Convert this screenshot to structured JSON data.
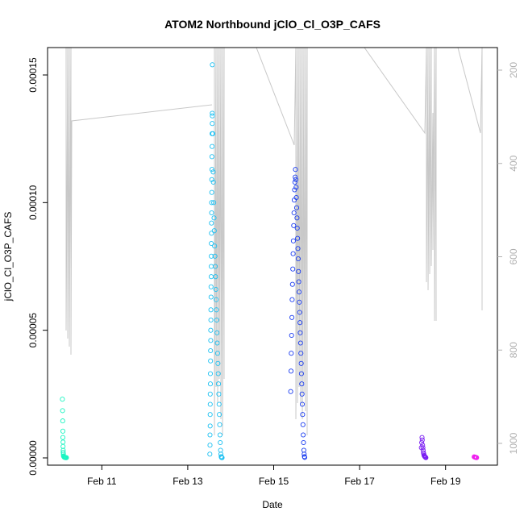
{
  "chart_data": {
    "type": "scatter",
    "title": "ATOM2 Northbound jClO_Cl_O3P_CAFS",
    "xlabel": "Date",
    "ylabel": "jClO_Cl_O3P_CAFS",
    "xlim": [
      "2016-02-10T00:00",
      "2016-02-20T00:00"
    ],
    "ylim": [
      0,
      0.000155
    ],
    "x_ticks": [
      {
        "x": "2016-02-11T00:00",
        "label": "Feb 11"
      },
      {
        "x": "2016-02-13T00:00",
        "label": "Feb 13"
      },
      {
        "x": "2016-02-15T00:00",
        "label": "Feb 15"
      },
      {
        "x": "2016-02-17T00:00",
        "label": "Feb 17"
      },
      {
        "x": "2016-02-19T00:00",
        "label": "Feb 19"
      }
    ],
    "y_ticks": [
      {
        "y": 0,
        "label": "0.00000"
      },
      {
        "y": 5e-05,
        "label": "0.00005"
      },
      {
        "y": 0.0001,
        "label": "0.00010"
      },
      {
        "y": 0.00015,
        "label": "0.00015"
      }
    ],
    "right_axis": {
      "ylim": [
        170,
        1055
      ],
      "ticks": [
        {
          "y": 200,
          "label": "200"
        },
        {
          "y": 400,
          "label": "400"
        },
        {
          "y": 600,
          "label": "600"
        },
        {
          "y": 800,
          "label": "800"
        },
        {
          "y": 1000,
          "label": "1000"
        }
      ],
      "color": "#b0b0b0"
    },
    "grid": false,
    "series": [
      {
        "color": "#19f5c1",
        "points": [
          [
            "2016-02-10T02:00",
            2.3e-05
          ],
          [
            "2016-02-10T02:05",
            1.85e-05
          ],
          [
            "2016-02-10T02:10",
            1.45e-05
          ],
          [
            "2016-02-10T02:15",
            1.05e-05
          ],
          [
            "2016-02-10T02:15",
            8e-06
          ],
          [
            "2016-02-10T02:20",
            6.2e-06
          ],
          [
            "2016-02-10T02:20",
            4.5e-06
          ],
          [
            "2016-02-10T02:25",
            3e-06
          ],
          [
            "2016-02-10T02:25",
            2.2e-06
          ],
          [
            "2016-02-10T02:30",
            1.5e-06
          ],
          [
            "2016-02-10T02:35",
            8e-07
          ],
          [
            "2016-02-10T02:45",
            5e-07
          ],
          [
            "2016-02-10T02:55",
            3e-07
          ],
          [
            "2016-02-10T03:10",
            2e-07
          ],
          [
            "2016-02-10T03:25",
            2e-07
          ],
          [
            "2016-02-10T03:40",
            1e-07
          ],
          [
            "2016-02-10T04:00",
            1e-07
          ],
          [
            "2016-02-10T04:15",
            1e-07
          ]
        ]
      },
      {
        "color": "#1cc0f2",
        "points": [
          [
            "2016-02-13T12:20",
            1.5e-06
          ],
          [
            "2016-02-13T12:25",
            5e-06
          ],
          [
            "2016-02-13T12:25",
            9e-06
          ],
          [
            "2016-02-13T12:30",
            1.25e-05
          ],
          [
            "2016-02-13T12:30",
            1.7e-05
          ],
          [
            "2016-02-13T12:35",
            2.1e-05
          ],
          [
            "2016-02-13T12:35",
            2.5e-05
          ],
          [
            "2016-02-13T12:40",
            2.9e-05
          ],
          [
            "2016-02-13T12:40",
            3.3e-05
          ],
          [
            "2016-02-13T12:45",
            3.8e-05
          ],
          [
            "2016-02-13T12:45",
            4.2e-05
          ],
          [
            "2016-02-13T12:50",
            4.6e-05
          ],
          [
            "2016-02-13T12:50",
            5e-05
          ],
          [
            "2016-02-13T12:55",
            5.4e-05
          ],
          [
            "2016-02-13T12:55",
            5.8e-05
          ],
          [
            "2016-02-13T13:00",
            6.3e-05
          ],
          [
            "2016-02-13T13:00",
            6.7e-05
          ],
          [
            "2016-02-13T13:05",
            7.1e-05
          ],
          [
            "2016-02-13T13:05",
            7.5e-05
          ],
          [
            "2016-02-13T13:10",
            7.9e-05
          ],
          [
            "2016-02-13T13:10",
            8.4e-05
          ],
          [
            "2016-02-13T13:15",
            8.8e-05
          ],
          [
            "2016-02-13T13:15",
            9.2e-05
          ],
          [
            "2016-02-13T13:20",
            9.6e-05
          ],
          [
            "2016-02-13T13:20",
            0.0001
          ],
          [
            "2016-02-13T13:25",
            0.000104
          ],
          [
            "2016-02-13T13:25",
            0.000109
          ],
          [
            "2016-02-13T13:30",
            0.000113
          ],
          [
            "2016-02-13T13:30",
            0.000118
          ],
          [
            "2016-02-13T13:35",
            0.000122
          ],
          [
            "2016-02-13T13:35",
            0.000127
          ],
          [
            "2016-02-13T13:40",
            0.000131
          ],
          [
            "2016-02-13T13:40",
            0.000135
          ],
          [
            "2016-02-13T13:45",
            0.000134
          ],
          [
            "2016-02-13T13:45",
            0.000154
          ],
          [
            "2016-02-13T14:00",
            0.000127
          ],
          [
            "2016-02-13T14:10",
            0.000112
          ],
          [
            "2016-02-13T14:20",
            0.000108
          ],
          [
            "2016-02-13T14:30",
            0.0001
          ],
          [
            "2016-02-13T14:40",
            9.4e-05
          ],
          [
            "2016-02-13T14:50",
            8.9e-05
          ],
          [
            "2016-02-13T15:00",
            8.3e-05
          ],
          [
            "2016-02-13T15:10",
            7.9e-05
          ],
          [
            "2016-02-13T15:20",
            7.5e-05
          ],
          [
            "2016-02-13T15:30",
            7.1e-05
          ],
          [
            "2016-02-13T15:40",
            6.6e-05
          ],
          [
            "2016-02-13T15:50",
            6.2e-05
          ],
          [
            "2016-02-13T16:00",
            5.8e-05
          ],
          [
            "2016-02-13T16:10",
            5.4e-05
          ],
          [
            "2016-02-13T16:20",
            4.9e-05
          ],
          [
            "2016-02-13T16:30",
            4.5e-05
          ],
          [
            "2016-02-13T16:40",
            4.1e-05
          ],
          [
            "2016-02-13T16:50",
            3.7e-05
          ],
          [
            "2016-02-13T17:00",
            3.3e-05
          ],
          [
            "2016-02-13T17:10",
            2.9e-05
          ],
          [
            "2016-02-13T17:20",
            2.5e-05
          ],
          [
            "2016-02-13T17:30",
            2.1e-05
          ],
          [
            "2016-02-13T17:40",
            1.7e-05
          ],
          [
            "2016-02-13T17:50",
            1.3e-05
          ],
          [
            "2016-02-13T18:00",
            9e-06
          ],
          [
            "2016-02-13T18:10",
            6e-06
          ],
          [
            "2016-02-13T18:20",
            3e-06
          ],
          [
            "2016-02-13T18:30",
            1.5e-06
          ],
          [
            "2016-02-13T18:40",
            5e-07
          ],
          [
            "2016-02-13T18:50",
            2e-07
          ],
          [
            "2016-02-13T19:00",
            1e-07
          ],
          [
            "2016-02-13T19:10",
            1e-07
          ]
        ]
      },
      {
        "color": "#1a3cf0",
        "points": [
          [
            "2016-02-15T09:30",
            2.6e-05
          ],
          [
            "2016-02-15T09:40",
            3.4e-05
          ],
          [
            "2016-02-15T09:50",
            4.1e-05
          ],
          [
            "2016-02-15T10:00",
            4.8e-05
          ],
          [
            "2016-02-15T10:10",
            5.5e-05
          ],
          [
            "2016-02-15T10:20",
            6.2e-05
          ],
          [
            "2016-02-15T10:30",
            6.8e-05
          ],
          [
            "2016-02-15T10:40",
            7.4e-05
          ],
          [
            "2016-02-15T10:50",
            8e-05
          ],
          [
            "2016-02-15T11:00",
            8.5e-05
          ],
          [
            "2016-02-15T11:10",
            9.1e-05
          ],
          [
            "2016-02-15T11:20",
            9.6e-05
          ],
          [
            "2016-02-15T11:30",
            0.000101
          ],
          [
            "2016-02-15T11:40",
            0.000105
          ],
          [
            "2016-02-15T11:50",
            0.000108
          ],
          [
            "2016-02-15T12:00",
            0.00011
          ],
          [
            "2016-02-15T12:10",
            0.000113
          ],
          [
            "2016-02-15T12:20",
            0.000109
          ],
          [
            "2016-02-15T12:30",
            0.000106
          ],
          [
            "2016-02-15T12:40",
            0.000102
          ],
          [
            "2016-02-15T12:50",
            9.8e-05
          ],
          [
            "2016-02-15T13:00",
            9.4e-05
          ],
          [
            "2016-02-15T13:10",
            9e-05
          ],
          [
            "2016-02-15T13:20",
            8.6e-05
          ],
          [
            "2016-02-15T13:30",
            8.2e-05
          ],
          [
            "2016-02-15T13:40",
            7.8e-05
          ],
          [
            "2016-02-15T13:50",
            7.3e-05
          ],
          [
            "2016-02-15T14:00",
            6.9e-05
          ],
          [
            "2016-02-15T14:10",
            6.5e-05
          ],
          [
            "2016-02-15T14:20",
            6.1e-05
          ],
          [
            "2016-02-15T14:30",
            5.7e-05
          ],
          [
            "2016-02-15T14:40",
            5.3e-05
          ],
          [
            "2016-02-15T14:50",
            4.9e-05
          ],
          [
            "2016-02-15T15:00",
            4.5e-05
          ],
          [
            "2016-02-15T15:10",
            4.1e-05
          ],
          [
            "2016-02-15T15:20",
            3.7e-05
          ],
          [
            "2016-02-15T15:30",
            3.3e-05
          ],
          [
            "2016-02-15T15:40",
            2.9e-05
          ],
          [
            "2016-02-15T15:50",
            2.5e-05
          ],
          [
            "2016-02-15T16:00",
            2.1e-05
          ],
          [
            "2016-02-15T16:10",
            1.7e-05
          ],
          [
            "2016-02-15T16:20",
            1.3e-05
          ],
          [
            "2016-02-15T16:30",
            9e-06
          ],
          [
            "2016-02-15T16:40",
            6e-06
          ],
          [
            "2016-02-15T16:50",
            3e-06
          ],
          [
            "2016-02-15T17:00",
            1.5e-06
          ],
          [
            "2016-02-15T17:10",
            5e-07
          ],
          [
            "2016-02-15T17:20",
            2e-07
          ]
        ]
      },
      {
        "color": "#7b1ff2",
        "points": [
          [
            "2016-02-18T10:30",
            4e-06
          ],
          [
            "2016-02-18T10:40",
            6e-06
          ],
          [
            "2016-02-18T10:50",
            8e-06
          ],
          [
            "2016-02-18T11:00",
            7e-06
          ],
          [
            "2016-02-18T11:10",
            5e-06
          ],
          [
            "2016-02-18T11:20",
            4e-06
          ],
          [
            "2016-02-18T11:30",
            3e-06
          ],
          [
            "2016-02-18T11:40",
            2e-06
          ],
          [
            "2016-02-18T11:50",
            1.5e-06
          ],
          [
            "2016-02-18T12:00",
            1e-06
          ],
          [
            "2016-02-18T12:10",
            8e-07
          ],
          [
            "2016-02-18T12:20",
            6e-07
          ],
          [
            "2016-02-18T12:30",
            4e-07
          ],
          [
            "2016-02-18T12:40",
            3e-07
          ],
          [
            "2016-02-18T12:50",
            2e-07
          ],
          [
            "2016-02-18T13:00",
            1e-07
          ]
        ]
      },
      {
        "color": "#ee1aee",
        "points": [
          [
            "2016-02-19T16:00",
            4e-07
          ],
          [
            "2016-02-19T16:20",
            3e-07
          ],
          [
            "2016-02-19T16:40",
            2e-07
          ],
          [
            "2016-02-19T17:00",
            2e-07
          ],
          [
            "2016-02-19T17:20",
            1e-07
          ]
        ]
      }
    ]
  }
}
